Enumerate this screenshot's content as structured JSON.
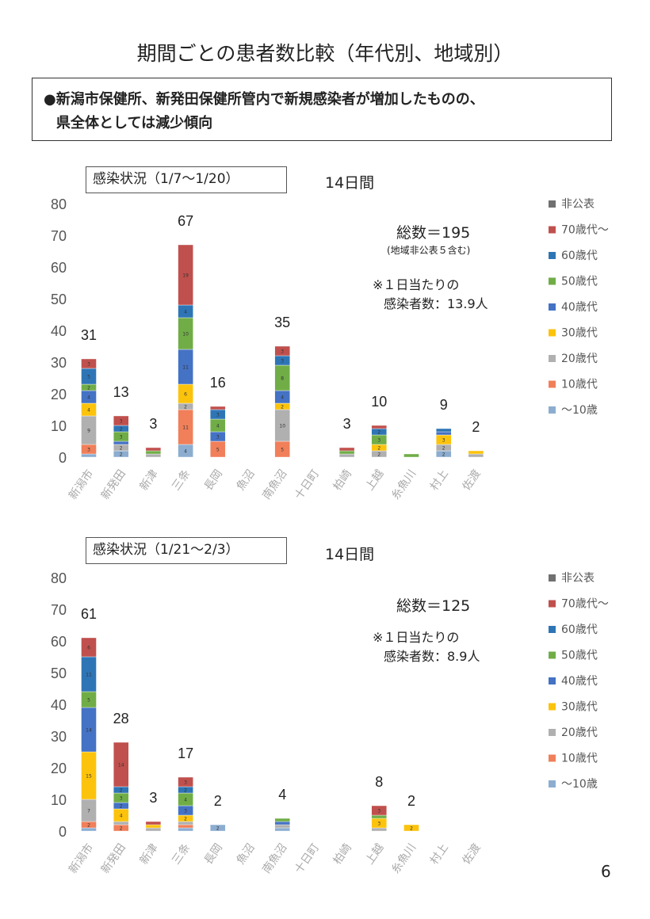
{
  "page_title": "期間ごとの患者数比較（年代別、地域別）",
  "summary": {
    "line1": "●新潟市保健所、新発田保健所管内で新規感染者が増加したものの、",
    "line2": "県全体としては減少傾向"
  },
  "page_number": "6",
  "charts": [
    {
      "label": "感染状況（1/7～1/20）",
      "days": "14日間",
      "total": "総数＝195",
      "total_note": "(地域非公表５含む)",
      "perday_line1": "※１日当たりの",
      "perday_line2": "感染者数：13.9人"
    },
    {
      "label": "感染状況（1/21～2/3）",
      "days": "14日間",
      "total": "総数＝125",
      "total_note": "",
      "perday_line1": "※１日当たりの",
      "perday_line2": "感染者数：8.9人"
    }
  ],
  "chart_data": [
    {
      "type": "bar",
      "stacked": true,
      "title": "感染状況（1/7～1/20）",
      "categories": [
        "新潟市",
        "新発田",
        "新津",
        "三条",
        "長岡",
        "魚沼",
        "南魚沼",
        "十日町",
        "柏崎",
        "上越",
        "糸魚川",
        "村上",
        "佐渡"
      ],
      "ylim": [
        0,
        80
      ],
      "yticks": [
        0,
        10,
        20,
        30,
        40,
        50,
        60,
        70,
        80
      ],
      "totals": [
        31,
        13,
        3,
        67,
        16,
        null,
        35,
        null,
        3,
        10,
        null,
        9,
        2
      ],
      "series": [
        {
          "name": "～10歳",
          "color": "#8cadd0",
          "values": [
            1,
            2,
            0,
            4,
            0,
            0,
            0,
            0,
            0,
            0,
            0,
            2,
            0
          ]
        },
        {
          "name": "10歳代",
          "color": "#f07f5a",
          "values": [
            3,
            0,
            0,
            11,
            5,
            0,
            5,
            0,
            0,
            0,
            0,
            0,
            0
          ]
        },
        {
          "name": "20歳代",
          "color": "#b0b0b0",
          "values": [
            9,
            2,
            1,
            2,
            0,
            0,
            10,
            0,
            1,
            2,
            0,
            2,
            1
          ]
        },
        {
          "name": "30歳代",
          "color": "#fcc30c",
          "values": [
            4,
            0,
            0,
            6,
            0,
            0,
            2,
            0,
            0,
            2,
            0,
            3,
            1
          ]
        },
        {
          "name": "40歳代",
          "color": "#4472c4",
          "values": [
            4,
            1,
            0,
            11,
            3,
            0,
            4,
            0,
            0,
            0,
            0,
            1,
            0
          ]
        },
        {
          "name": "50歳代",
          "color": "#70ad47",
          "values": [
            2,
            3,
            1,
            10,
            4,
            0,
            8,
            0,
            1,
            3,
            1,
            0,
            0
          ]
        },
        {
          "name": "60歳代",
          "color": "#2e75b6",
          "values": [
            5,
            2,
            0,
            4,
            3,
            0,
            3,
            0,
            0,
            2,
            0,
            1,
            0
          ]
        },
        {
          "name": "70歳代～",
          "color": "#c0504d",
          "values": [
            3,
            3,
            1,
            19,
            1,
            0,
            3,
            0,
            1,
            1,
            0,
            0,
            0
          ]
        },
        {
          "name": "非公表",
          "color": "#707070",
          "values": [
            0,
            0,
            0,
            0,
            0,
            0,
            0,
            0,
            0,
            0,
            0,
            0,
            0
          ]
        }
      ]
    },
    {
      "type": "bar",
      "stacked": true,
      "title": "感染状況（1/21～2/3）",
      "categories": [
        "新潟市",
        "新発田",
        "新津",
        "三条",
        "長岡",
        "魚沼",
        "南魚沼",
        "十日町",
        "柏崎",
        "上越",
        "糸魚川",
        "村上",
        "佐渡"
      ],
      "ylim": [
        0,
        80
      ],
      "yticks": [
        0,
        10,
        20,
        30,
        40,
        50,
        60,
        70,
        80
      ],
      "totals": [
        61,
        28,
        3,
        17,
        2,
        null,
        4,
        null,
        null,
        8,
        2,
        null,
        null
      ],
      "series": [
        {
          "name": "～10歳",
          "color": "#8cadd0",
          "values": [
            1,
            0,
            0,
            1,
            2,
            0,
            1,
            0,
            0,
            0,
            0,
            0,
            0
          ]
        },
        {
          "name": "10歳代",
          "color": "#f07f5a",
          "values": [
            2,
            2,
            0,
            1,
            0,
            0,
            0,
            0,
            0,
            0,
            0,
            0,
            0
          ]
        },
        {
          "name": "20歳代",
          "color": "#b0b0b0",
          "values": [
            7,
            1,
            1,
            1,
            0,
            0,
            1,
            0,
            0,
            1,
            0,
            0,
            0
          ]
        },
        {
          "name": "30歳代",
          "color": "#fcc30c",
          "values": [
            15,
            4,
            1,
            2,
            0,
            0,
            0,
            0,
            0,
            3,
            2,
            0,
            0
          ]
        },
        {
          "name": "40歳代",
          "color": "#4472c4",
          "values": [
            14,
            2,
            0,
            3,
            0,
            0,
            1,
            0,
            0,
            0,
            0,
            0,
            0
          ]
        },
        {
          "name": "50歳代",
          "color": "#70ad47",
          "values": [
            5,
            3,
            0,
            4,
            0,
            0,
            1,
            0,
            0,
            1,
            0,
            0,
            0
          ]
        },
        {
          "name": "60歳代",
          "color": "#2e75b6",
          "values": [
            11,
            2,
            0,
            2,
            0,
            0,
            0,
            0,
            0,
            0,
            0,
            0,
            0
          ]
        },
        {
          "name": "70歳代～",
          "color": "#c0504d",
          "values": [
            6,
            14,
            1,
            3,
            0,
            0,
            0,
            0,
            0,
            3,
            0,
            0,
            0
          ]
        },
        {
          "name": "非公表",
          "color": "#707070",
          "values": [
            0,
            0,
            0,
            0,
            0,
            0,
            0,
            0,
            0,
            0,
            0,
            0,
            0
          ]
        }
      ]
    }
  ]
}
